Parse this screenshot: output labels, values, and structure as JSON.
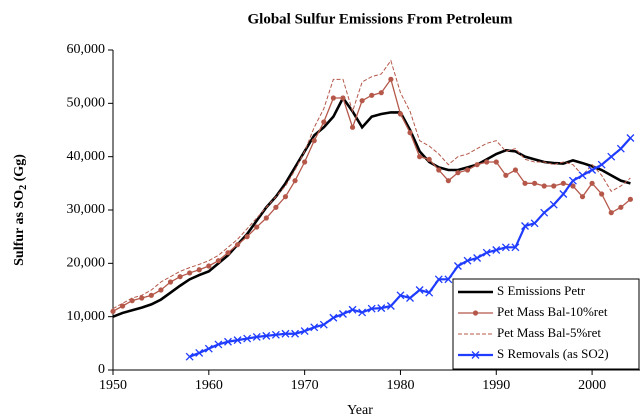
{
  "chart_data": {
    "type": "line",
    "title": "Global Sulfur Emissions From Petroleum",
    "x_label": "Year",
    "y_label": [
      "Sulfur as SO",
      "2",
      " (Gg)"
    ],
    "x": [
      1950,
      1951,
      1952,
      1953,
      1954,
      1955,
      1956,
      1957,
      1958,
      1959,
      1960,
      1961,
      1962,
      1963,
      1964,
      1965,
      1966,
      1967,
      1968,
      1969,
      1970,
      1971,
      1972,
      1973,
      1974,
      1975,
      1976,
      1977,
      1978,
      1979,
      1980,
      1981,
      1982,
      1983,
      1984,
      1985,
      1986,
      1987,
      1988,
      1989,
      1990,
      1991,
      1992,
      1993,
      1994,
      1995,
      1996,
      1997,
      1998,
      1999,
      2000,
      2001,
      2002,
      2003,
      2004
    ],
    "xlim": [
      1950,
      2005
    ],
    "xticks": [
      1950,
      1960,
      1970,
      1980,
      1990,
      2000
    ],
    "ylim": [
      0,
      60000
    ],
    "yticks": [
      0,
      {
        "value": 10000,
        "label": "10,000"
      },
      {
        "value": 20000,
        "label": "20,000"
      },
      {
        "value": 30000,
        "label": "30,000"
      },
      {
        "value": 40000,
        "label": "40,000"
      },
      {
        "value": 50000,
        "label": "50,000"
      },
      {
        "value": 60000,
        "label": "60,000"
      }
    ],
    "legend": "lower right",
    "series": [
      {
        "name": "S Emissions Petr",
        "color": "#000000",
        "style": "solid",
        "marker": "none",
        "values": [
          10000,
          10700,
          11200,
          11700,
          12300,
          13200,
          14500,
          15800,
          17000,
          17800,
          18500,
          20000,
          21500,
          23500,
          25500,
          28000,
          30500,
          32500,
          35000,
          38000,
          41000,
          44000,
          45500,
          47500,
          51000,
          48500,
          45500,
          47500,
          48000,
          48300,
          48300,
          45000,
          41000,
          39000,
          38000,
          37500,
          37500,
          38000,
          38500,
          39500,
          40500,
          41200,
          41000,
          40000,
          39500,
          39000,
          38800,
          38700,
          39300,
          38800,
          38200,
          37500,
          36500,
          35500,
          35000
        ]
      },
      {
        "name": "Pet Mass Bal-10%ret",
        "color": "#b5584a",
        "style": "solid",
        "marker": "dot",
        "values": [
          11000,
          12000,
          13000,
          13500,
          14000,
          15000,
          16500,
          17500,
          18200,
          18800,
          19500,
          20500,
          22000,
          23500,
          25000,
          26800,
          28500,
          30500,
          32500,
          35500,
          39000,
          43000,
          46500,
          51000,
          51000,
          45500,
          50500,
          51500,
          52000,
          54500,
          48000,
          44500,
          40000,
          39500,
          37500,
          35500,
          37000,
          37500,
          38500,
          39000,
          39000,
          36500,
          37500,
          35000,
          35000,
          34500,
          34500,
          35000,
          34500,
          32500,
          35000,
          33000,
          29500,
          30500,
          32000
        ]
      },
      {
        "name": "Pet Mass Bal-5%ret",
        "color": "#b5584a",
        "style": "dashed",
        "marker": "none",
        "values": [
          11500,
          12500,
          13500,
          14000,
          15000,
          16500,
          17500,
          18500,
          19200,
          19800,
          20500,
          21500,
          23000,
          24500,
          26500,
          28500,
          30500,
          32500,
          34500,
          37500,
          41000,
          45500,
          49000,
          54500,
          54500,
          48500,
          54000,
          55000,
          55500,
          58000,
          52000,
          48500,
          43000,
          42000,
          40500,
          38500,
          40000,
          40500,
          41500,
          42500,
          43000,
          41000,
          41500,
          39500,
          39000,
          39000,
          38500,
          39000,
          38500,
          36500,
          38500,
          36500,
          33500,
          34500,
          36000
        ]
      },
      {
        "name": "S Removals (as SO2)",
        "color": "#1f3cff",
        "style": "solid",
        "marker": "x",
        "values": [
          null,
          null,
          null,
          null,
          null,
          null,
          null,
          null,
          2500,
          3200,
          4000,
          4800,
          5300,
          5600,
          5900,
          6200,
          6400,
          6600,
          6800,
          6800,
          7300,
          8000,
          8500,
          9800,
          10500,
          11300,
          10800,
          11500,
          11600,
          12000,
          14000,
          13500,
          15000,
          14500,
          17000,
          17000,
          19500,
          20500,
          21000,
          22000,
          22500,
          23000,
          23000,
          27000,
          27500,
          29500,
          31000,
          33000,
          35500,
          36500,
          37500,
          38500,
          40000,
          41500,
          43500
        ]
      }
    ]
  }
}
